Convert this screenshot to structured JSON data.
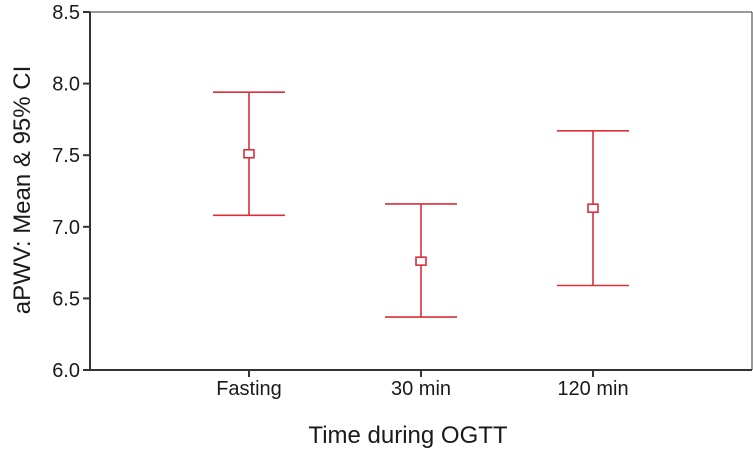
{
  "chart_data": {
    "type": "error_bar",
    "xlabel": "Time during OGTT",
    "ylabel": "aPWV: Mean & 95% CI",
    "ylim": [
      6.0,
      8.5
    ],
    "yticks": [
      "6.0",
      "6.5",
      "7.0",
      "7.5",
      "8.0",
      "8.5"
    ],
    "categories": [
      "Fasting",
      "30 min",
      "120 min"
    ],
    "series": [
      {
        "points": [
          {
            "category": "Fasting",
            "mean": 7.51,
            "lower": 7.08,
            "upper": 7.94
          },
          {
            "category": "30 min",
            "mean": 6.76,
            "lower": 6.37,
            "upper": 7.16
          },
          {
            "category": "120 min",
            "mean": 7.13,
            "lower": 6.59,
            "upper": 7.67
          }
        ]
      }
    ],
    "colors": {
      "error_bar": "#d9303a",
      "axis": "#333333"
    },
    "grid": false
  }
}
